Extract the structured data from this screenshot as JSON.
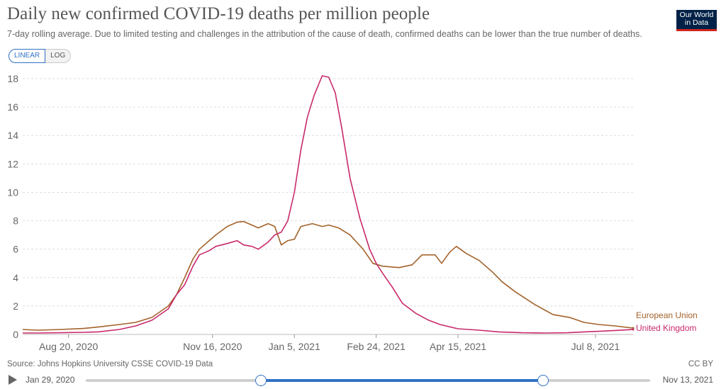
{
  "header": {
    "title": "Daily new confirmed COVID-19 deaths per million people",
    "subtitle": "7-day rolling average. Due to limited testing and challenges in the attribution of the cause of death, confirmed deaths can be lower than the true number of deaths.",
    "logo_line1": "Our World",
    "logo_line2": "in Data"
  },
  "controls": {
    "linear_label": "LINEAR",
    "log_label": "LOG",
    "active": "linear"
  },
  "footer": {
    "source": "Source: Johns Hopkins University CSSE COVID-19 Data",
    "license": "CC BY"
  },
  "timeline": {
    "start_label": "Jan 29, 2020",
    "end_label": "Nov 13, 2021",
    "range_start_fraction": 0.31,
    "range_end_fraction": 0.81
  },
  "colors": {
    "eu": "#a3622a",
    "uk": "#c8296b",
    "grid": "#dddddd",
    "axis_text": "#666666",
    "accent": "#3171c5"
  },
  "chart_data": {
    "type": "line",
    "title": "Daily new confirmed COVID-19 deaths per million people",
    "xlabel": "",
    "ylabel": "",
    "x_range": [
      "2020-07-23",
      "2021-07-31"
    ],
    "ylim": [
      0,
      18.5
    ],
    "y_ticks": [
      0,
      2,
      4,
      6,
      8,
      10,
      12,
      14,
      16,
      18
    ],
    "x_ticks": [
      {
        "date": "2020-08-20",
        "label": "Aug 20, 2020"
      },
      {
        "date": "2020-11-16",
        "label": "Nov 16, 2020"
      },
      {
        "date": "2021-01-05",
        "label": "Jan 5, 2021"
      },
      {
        "date": "2021-02-24",
        "label": "Feb 24, 2021"
      },
      {
        "date": "2021-04-15",
        "label": "Apr 15, 2021"
      },
      {
        "date": "2021-07-08",
        "label": "Jul 8, 2021"
      }
    ],
    "grid": true,
    "legend": "end-of-line labels",
    "series": [
      {
        "name": "European Union",
        "color": "#a3622a",
        "points": [
          [
            "2020-07-23",
            0.35
          ],
          [
            "2020-08-01",
            0.3
          ],
          [
            "2020-08-15",
            0.35
          ],
          [
            "2020-08-29",
            0.42
          ],
          [
            "2020-09-07",
            0.52
          ],
          [
            "2020-09-20",
            0.7
          ],
          [
            "2020-09-30",
            0.85
          ],
          [
            "2020-10-10",
            1.2
          ],
          [
            "2020-10-20",
            2.0
          ],
          [
            "2020-10-25",
            2.8
          ],
          [
            "2020-10-30",
            4.0
          ],
          [
            "2020-11-04",
            5.3
          ],
          [
            "2020-11-08",
            6.0
          ],
          [
            "2020-11-14",
            6.6
          ],
          [
            "2020-11-18",
            7.0
          ],
          [
            "2020-11-25",
            7.6
          ],
          [
            "2020-12-01",
            7.9
          ],
          [
            "2020-12-05",
            7.95
          ],
          [
            "2020-12-10",
            7.7
          ],
          [
            "2020-12-14",
            7.5
          ],
          [
            "2020-12-20",
            7.8
          ],
          [
            "2020-12-24",
            7.6
          ],
          [
            "2020-12-28",
            6.3
          ],
          [
            "2021-01-01",
            6.6
          ],
          [
            "2021-01-05",
            6.7
          ],
          [
            "2021-01-09",
            7.6
          ],
          [
            "2021-01-16",
            7.8
          ],
          [
            "2021-01-22",
            7.6
          ],
          [
            "2021-01-26",
            7.7
          ],
          [
            "2021-02-01",
            7.5
          ],
          [
            "2021-02-08",
            7.0
          ],
          [
            "2021-02-16",
            6.0
          ],
          [
            "2021-02-22",
            5.0
          ],
          [
            "2021-02-28",
            4.8
          ],
          [
            "2021-03-10",
            4.7
          ],
          [
            "2021-03-18",
            4.9
          ],
          [
            "2021-03-24",
            5.6
          ],
          [
            "2021-04-01",
            5.6
          ],
          [
            "2021-04-05",
            5.0
          ],
          [
            "2021-04-10",
            5.8
          ],
          [
            "2021-04-14",
            6.2
          ],
          [
            "2021-04-20",
            5.7
          ],
          [
            "2021-04-28",
            5.2
          ],
          [
            "2021-05-06",
            4.4
          ],
          [
            "2021-05-12",
            3.7
          ],
          [
            "2021-05-20",
            3.0
          ],
          [
            "2021-06-01",
            2.1
          ],
          [
            "2021-06-12",
            1.4
          ],
          [
            "2021-06-22",
            1.2
          ],
          [
            "2021-07-01",
            0.85
          ],
          [
            "2021-07-10",
            0.7
          ],
          [
            "2021-07-20",
            0.6
          ],
          [
            "2021-07-31",
            0.45
          ]
        ]
      },
      {
        "name": "United Kingdom",
        "color": "#c8296b",
        "points": [
          [
            "2020-07-23",
            0.1
          ],
          [
            "2020-08-01",
            0.1
          ],
          [
            "2020-08-15",
            0.12
          ],
          [
            "2020-08-29",
            0.15
          ],
          [
            "2020-09-07",
            0.18
          ],
          [
            "2020-09-20",
            0.35
          ],
          [
            "2020-09-30",
            0.6
          ],
          [
            "2020-10-10",
            1.0
          ],
          [
            "2020-10-20",
            1.8
          ],
          [
            "2020-10-25",
            2.8
          ],
          [
            "2020-10-30",
            3.5
          ],
          [
            "2020-11-04",
            4.8
          ],
          [
            "2020-11-08",
            5.6
          ],
          [
            "2020-11-14",
            5.9
          ],
          [
            "2020-11-18",
            6.2
          ],
          [
            "2020-11-25",
            6.4
          ],
          [
            "2020-12-01",
            6.6
          ],
          [
            "2020-12-05",
            6.3
          ],
          [
            "2020-12-10",
            6.2
          ],
          [
            "2020-12-14",
            6.0
          ],
          [
            "2020-12-20",
            6.5
          ],
          [
            "2020-12-24",
            7.0
          ],
          [
            "2020-12-28",
            7.2
          ],
          [
            "2021-01-01",
            8.0
          ],
          [
            "2021-01-05",
            10.0
          ],
          [
            "2021-01-09",
            13.0
          ],
          [
            "2021-01-13",
            15.3
          ],
          [
            "2021-01-17",
            16.8
          ],
          [
            "2021-01-22",
            18.2
          ],
          [
            "2021-01-26",
            18.1
          ],
          [
            "2021-01-30",
            17.0
          ],
          [
            "2021-02-03",
            14.5
          ],
          [
            "2021-02-08",
            11.0
          ],
          [
            "2021-02-14",
            8.2
          ],
          [
            "2021-02-20",
            6.0
          ],
          [
            "2021-02-24",
            5.0
          ],
          [
            "2021-02-28",
            4.3
          ],
          [
            "2021-03-06",
            3.3
          ],
          [
            "2021-03-12",
            2.2
          ],
          [
            "2021-03-20",
            1.5
          ],
          [
            "2021-03-28",
            1.0
          ],
          [
            "2021-04-04",
            0.7
          ],
          [
            "2021-04-15",
            0.4
          ],
          [
            "2021-04-28",
            0.3
          ],
          [
            "2021-05-10",
            0.18
          ],
          [
            "2021-05-24",
            0.12
          ],
          [
            "2021-06-07",
            0.1
          ],
          [
            "2021-06-21",
            0.12
          ],
          [
            "2021-07-01",
            0.18
          ],
          [
            "2021-07-10",
            0.22
          ],
          [
            "2021-07-20",
            0.28
          ],
          [
            "2021-07-31",
            0.35
          ]
        ]
      }
    ]
  }
}
